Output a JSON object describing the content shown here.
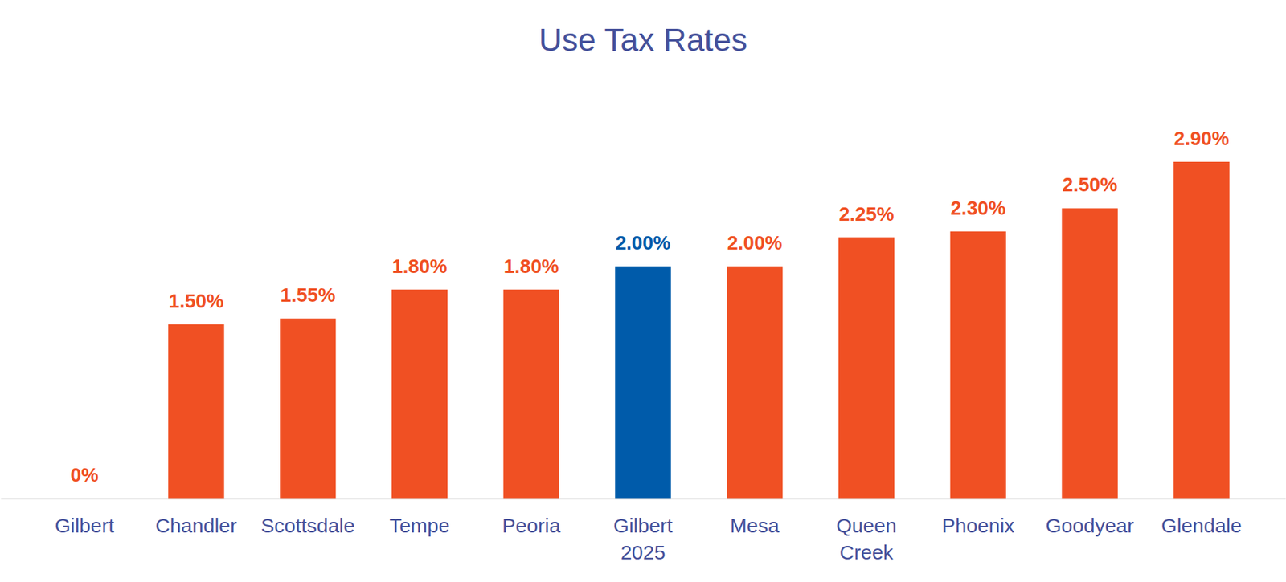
{
  "chart_data": {
    "type": "bar",
    "title": "Use Tax Rates",
    "categories": [
      "Gilbert",
      "Chandler",
      "Scottsdale",
      "Tempe",
      "Peoria",
      "Gilbert 2025",
      "Mesa",
      "Queen Creek",
      "Phoenix",
      "Goodyear",
      "Glendale"
    ],
    "values": [
      0,
      1.5,
      1.55,
      1.8,
      1.8,
      2,
      2,
      2.25,
      2.3,
      2.5,
      2.9
    ],
    "value_labels": [
      "0%",
      "1.50%",
      "1.55%",
      "1.80%",
      "1.80%",
      "2.00%",
      "2.00%",
      "2.25%",
      "2.30%",
      "2.50%",
      "2.90%"
    ],
    "colors": [
      "#F05023",
      "#F05023",
      "#F05023",
      "#F05023",
      "#F05023",
      "#005BAA",
      "#F05023",
      "#F05023",
      "#F05023",
      "#F05023",
      "#F05023"
    ],
    "ylim": [
      0,
      2.9
    ],
    "data_labels": true,
    "tick_labels": "x",
    "grid": false
  }
}
